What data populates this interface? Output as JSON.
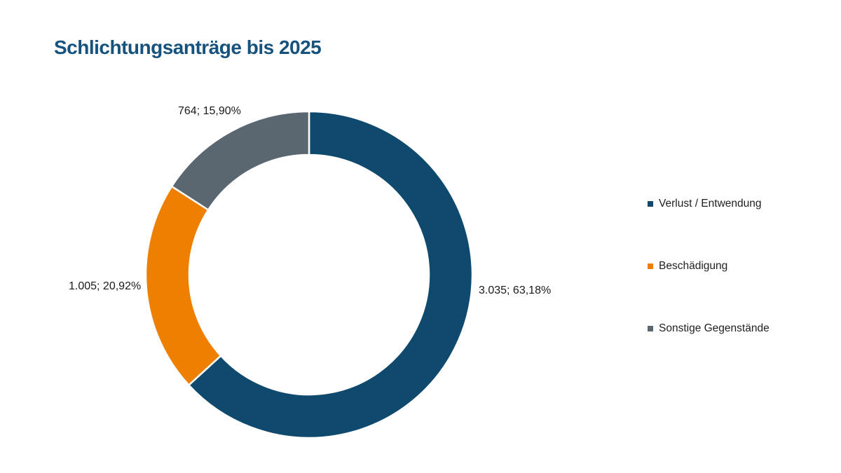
{
  "title": "Schlichtungsanträge bis 2025",
  "title_color": "#15527D",
  "chart_data": {
    "type": "pie",
    "subtype": "donut",
    "title": "Schlichtungsanträge bis 2025",
    "categories": [
      "Verlust / Entwendung",
      "Beschädigung",
      "Sonstige Gegenstände"
    ],
    "values": [
      3035,
      1005,
      764
    ],
    "percentages": [
      63.18,
      20.92,
      15.9
    ],
    "data_labels": [
      "3.035; 63,18%",
      "1.005; 20,92%",
      "764; 15,90%"
    ],
    "colors": [
      "#10496E",
      "#EE7F00",
      "#5A6670"
    ],
    "separator_color": "#FFFFFF",
    "start_angle": "top",
    "direction": "clockwise",
    "hole_ratio": 0.735,
    "legend_position": "right"
  }
}
